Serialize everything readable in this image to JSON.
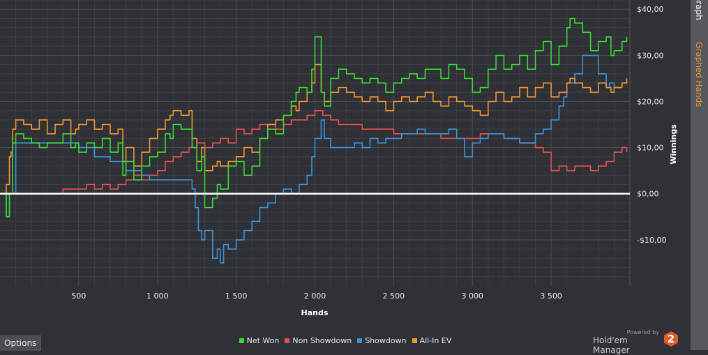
{
  "side_tabs": {
    "graph": "Graph",
    "graphed_hands": "Graphed Hands"
  },
  "options_label": "Options",
  "brand": {
    "powered_by": "Powered by",
    "name": "Hold'em Manager",
    "logo_text": "2"
  },
  "colors": {
    "net_won": "#39d935",
    "non_showdown": "#e0524f",
    "showdown": "#3b93d9",
    "all_in_ev": "#ef9733",
    "zero_line": "#ffffff",
    "background": "#2f3136"
  },
  "chart_data": {
    "type": "line",
    "xlabel": "Hands",
    "ylabel": "Winnings",
    "xlim": [
      0,
      4000
    ],
    "ylim": [
      -20,
      42
    ],
    "x_ticks": [
      500,
      1000,
      1500,
      2000,
      2500,
      3000,
      3500
    ],
    "x_tick_labels": [
      "500",
      "1 000",
      "1 500",
      "2 000",
      "2 500",
      "3 000",
      "3 500"
    ],
    "y_ticks": [
      -10,
      0,
      10,
      20,
      30,
      40
    ],
    "y_tick_labels": [
      "-$10,00",
      "$0,00",
      "$10,00",
      "$20,00",
      "$30,00",
      "$40,00"
    ],
    "grid": true,
    "legend_position": "bottom-center",
    "series": [
      {
        "name": "Net Won",
        "color": "#39d935",
        "x": [
          0,
          40,
          60,
          70,
          80,
          100,
          150,
          200,
          250,
          300,
          350,
          400,
          450,
          480,
          500,
          550,
          600,
          650,
          700,
          750,
          780,
          800,
          850,
          900,
          950,
          1000,
          1050,
          1080,
          1100,
          1150,
          1200,
          1220,
          1250,
          1280,
          1300,
          1350,
          1380,
          1400,
          1450,
          1500,
          1550,
          1600,
          1650,
          1700,
          1750,
          1800,
          1850,
          1880,
          1900,
          1950,
          1980,
          2000,
          2040,
          2060,
          2100,
          2150,
          2200,
          2250,
          2300,
          2350,
          2400,
          2450,
          2500,
          2550,
          2600,
          2650,
          2700,
          2750,
          2800,
          2850,
          2900,
          2950,
          3000,
          3050,
          3100,
          3150,
          3200,
          3250,
          3300,
          3350,
          3400,
          3450,
          3500,
          3550,
          3600,
          3620,
          3650,
          3700,
          3750,
          3800,
          3850,
          3880,
          3900,
          3950,
          3980
        ],
        "y": [
          0,
          -5,
          0,
          0,
          11,
          13,
          12,
          11,
          10,
          11,
          11,
          13,
          10,
          11,
          9,
          11,
          10,
          12,
          9,
          11,
          4,
          7,
          3,
          6,
          8,
          9,
          13,
          12,
          15,
          14,
          14,
          10,
          5,
          8,
          -3,
          -1,
          2,
          1,
          6,
          7,
          4,
          6,
          12,
          14,
          13,
          17,
          20,
          22,
          23,
          22,
          27,
          34,
          22,
          19,
          25,
          27,
          26,
          25,
          24,
          25,
          24,
          22,
          24,
          25,
          26,
          25,
          27,
          27,
          25,
          28,
          27,
          25,
          22,
          23,
          27,
          30,
          27,
          28,
          30,
          27,
          31,
          33,
          28,
          32,
          36,
          38,
          37,
          35,
          31,
          33,
          34,
          30,
          31,
          33,
          34
        ]
      },
      {
        "name": "Non Showdown",
        "color": "#e0524f",
        "x": [
          0,
          100,
          200,
          300,
          400,
          450,
          500,
          550,
          600,
          650,
          700,
          750,
          800,
          850,
          900,
          950,
          1000,
          1050,
          1100,
          1150,
          1200,
          1250,
          1300,
          1350,
          1400,
          1450,
          1500,
          1550,
          1600,
          1650,
          1700,
          1750,
          1800,
          1850,
          1900,
          1950,
          2000,
          2050,
          2100,
          2150,
          2200,
          2300,
          2400,
          2500,
          2600,
          2700,
          2800,
          2900,
          3000,
          3050,
          3100,
          3200,
          3300,
          3400,
          3450,
          3500,
          3550,
          3600,
          3650,
          3700,
          3750,
          3800,
          3850,
          3900,
          3950,
          3980
        ],
        "y": [
          0,
          0,
          0,
          0,
          1,
          1,
          1,
          2,
          1,
          2,
          1,
          2,
          3,
          4,
          3,
          4,
          5,
          7,
          8,
          9,
          10,
          11,
          10,
          11,
          12,
          11,
          14,
          13,
          14,
          15,
          15,
          14,
          15,
          16,
          16,
          17,
          18,
          17,
          16,
          15,
          15,
          14,
          14,
          13,
          13,
          13,
          12,
          12,
          12,
          13,
          13,
          12,
          11,
          10,
          9,
          5,
          6,
          5,
          6,
          6,
          5,
          6,
          7,
          9,
          10,
          9
        ]
      },
      {
        "name": "Showdown",
        "color": "#3b93d9",
        "x": [
          0,
          40,
          60,
          80,
          100,
          200,
          300,
          400,
          500,
          600,
          700,
          800,
          850,
          900,
          950,
          1000,
          1050,
          1100,
          1150,
          1200,
          1220,
          1240,
          1260,
          1280,
          1300,
          1320,
          1350,
          1380,
          1400,
          1420,
          1450,
          1500,
          1550,
          1600,
          1650,
          1700,
          1750,
          1800,
          1850,
          1900,
          1950,
          1980,
          2000,
          2040,
          2060,
          2100,
          2150,
          2200,
          2250,
          2300,
          2350,
          2400,
          2450,
          2500,
          2550,
          2600,
          2650,
          2700,
          2750,
          2800,
          2850,
          2900,
          2950,
          3000,
          3050,
          3100,
          3200,
          3300,
          3400,
          3450,
          3500,
          3550,
          3580,
          3600,
          3650,
          3700,
          3750,
          3800,
          3850,
          3870,
          3900,
          3950,
          3980
        ],
        "y": [
          0,
          -5,
          0,
          0,
          11,
          11,
          11,
          11,
          10,
          8,
          7,
          5,
          5,
          4,
          3,
          3,
          3,
          3,
          3,
          3,
          1,
          -3,
          -8,
          -10,
          -8,
          -8,
          -14,
          -12,
          -15,
          -11,
          -12,
          -10,
          -8,
          -6,
          -3,
          -2,
          0,
          1,
          0,
          2,
          4,
          8,
          12,
          16,
          12,
          10,
          10,
          10,
          11,
          10,
          12,
          11,
          12,
          12,
          13,
          13,
          14,
          13,
          13,
          13,
          14,
          12,
          8,
          11,
          12,
          13,
          12,
          11,
          13,
          14,
          16,
          19,
          21,
          24,
          26,
          30,
          30,
          26,
          23,
          24,
          23,
          24,
          24
        ]
      },
      {
        "name": "All-In EV",
        "color": "#ef9733",
        "x": [
          0,
          40,
          60,
          70,
          80,
          100,
          150,
          200,
          250,
          300,
          350,
          400,
          450,
          480,
          500,
          550,
          600,
          650,
          700,
          750,
          780,
          800,
          850,
          900,
          950,
          1000,
          1050,
          1080,
          1100,
          1150,
          1200,
          1220,
          1250,
          1280,
          1300,
          1350,
          1380,
          1400,
          1450,
          1500,
          1550,
          1600,
          1650,
          1700,
          1750,
          1800,
          1850,
          1880,
          1900,
          1950,
          1980,
          2000,
          2040,
          2060,
          2100,
          2150,
          2200,
          2250,
          2300,
          2350,
          2400,
          2450,
          2500,
          2550,
          2600,
          2650,
          2700,
          2750,
          2800,
          2850,
          2900,
          2950,
          3000,
          3050,
          3100,
          3150,
          3200,
          3250,
          3300,
          3350,
          3400,
          3450,
          3500,
          3550,
          3600,
          3620,
          3650,
          3700,
          3750,
          3800,
          3850,
          3880,
          3900,
          3950,
          3980
        ],
        "y": [
          0,
          2,
          8,
          9,
          14,
          16,
          15,
          14,
          16,
          13,
          15,
          16,
          13,
          14,
          15,
          16,
          14,
          15,
          13,
          14,
          7,
          10,
          6,
          9,
          12,
          14,
          16,
          17,
          18,
          17,
          18,
          12,
          7,
          10,
          5,
          6,
          7,
          6,
          7,
          8,
          10,
          9,
          12,
          15,
          16,
          17,
          19,
          18,
          20,
          22,
          24,
          28,
          22,
          20,
          22,
          23,
          22,
          21,
          20,
          21,
          20,
          18,
          20,
          21,
          20,
          21,
          22,
          20,
          19,
          21,
          20,
          19,
          18,
          17,
          20,
          22,
          20,
          21,
          23,
          21,
          23,
          24,
          21,
          22,
          24,
          25,
          24,
          23,
          22,
          24,
          23,
          22,
          23,
          24,
          25
        ]
      }
    ]
  }
}
